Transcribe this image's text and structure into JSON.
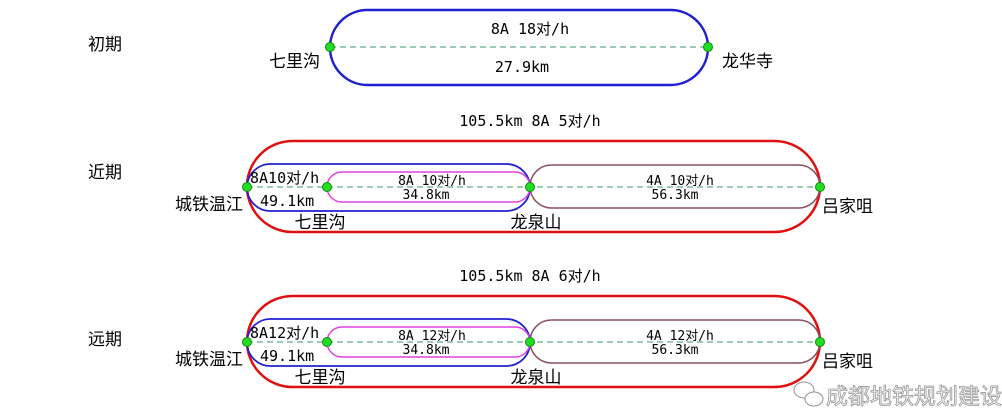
{
  "colors": {
    "outer": "#e01010",
    "branch": "#2020d0",
    "short": "#e040e0",
    "east": "#8a5060",
    "station": "#22dd22"
  },
  "phases": [
    {
      "name": "初期",
      "line": {
        "service": "8A 18对/h",
        "length": "27.9km"
      },
      "stations": [
        "七里沟",
        "龙华寺"
      ]
    },
    {
      "name": "近期",
      "through": "105.5km 8A 5对/h",
      "west": {
        "service": "8A10对/h",
        "length": "49.1km"
      },
      "middle": {
        "service": "8A 10对/h",
        "length": "34.8km"
      },
      "east": {
        "service": "4A 10对/h",
        "length": "56.3km"
      },
      "stations": [
        "城铁温江",
        "七里沟",
        "龙泉山",
        "吕家咀"
      ]
    },
    {
      "name": "远期",
      "through": "105.5km 8A 6对/h",
      "west": {
        "service": "8A12对/h",
        "length": "49.1km"
      },
      "middle": {
        "service": "8A 12对/h",
        "length": "34.8km"
      },
      "east": {
        "service": "4A 12对/h",
        "length": "56.3km"
      },
      "stations": [
        "城铁温江",
        "七里沟",
        "龙泉山",
        "吕家咀"
      ]
    }
  ],
  "watermark": "成都地铁规划建设"
}
